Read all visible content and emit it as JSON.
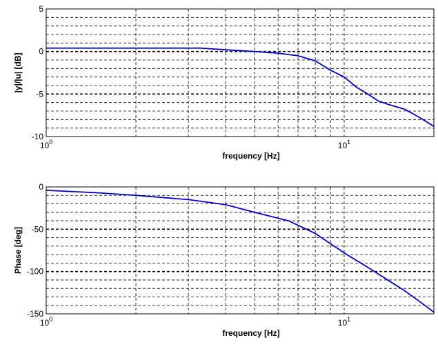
{
  "chart_data": [
    {
      "type": "line",
      "xscale": "log",
      "x_tick_labels": [
        {
          "base": "10",
          "exp": "0"
        },
        {
          "base": "10",
          "exp": "1"
        }
      ],
      "y_tick_labels": [
        "5",
        "0",
        "-5",
        "-10"
      ],
      "xlabel": "frequency [Hz]",
      "ylabel": "|y|/|u| [dB]",
      "xlim": [
        1,
        20
      ],
      "ylim": [
        -10,
        5
      ],
      "grid": true,
      "line_color": "#0000cc",
      "series": [
        {
          "x": [
            1,
            2,
            3.3,
            4,
            5,
            6,
            7,
            8,
            9,
            10,
            11,
            12,
            13,
            14,
            16,
            18,
            20
          ],
          "y": [
            0.4,
            0.4,
            0.4,
            0.2,
            0.0,
            -0.2,
            -0.5,
            -1.1,
            -2.2,
            -3.0,
            -4.2,
            -5.0,
            -5.8,
            -6.2,
            -6.8,
            -7.8,
            -8.8
          ]
        }
      ]
    },
    {
      "type": "line",
      "xscale": "log",
      "x_tick_labels": [
        {
          "base": "10",
          "exp": "0"
        },
        {
          "base": "10",
          "exp": "1"
        }
      ],
      "y_tick_labels": [
        "0",
        "-50",
        "-100",
        "-150"
      ],
      "xlabel": "frequency [Hz]",
      "ylabel": "Phase [deg]",
      "xlim": [
        1,
        20
      ],
      "ylim": [
        -150,
        0
      ],
      "grid": true,
      "line_color": "#0000cc",
      "series": [
        {
          "x": [
            1,
            1.5,
            2,
            3,
            4,
            5,
            6.5,
            8,
            10,
            12,
            14,
            16,
            18,
            20
          ],
          "y": [
            -4,
            -7,
            -10,
            -15,
            -21,
            -30,
            -40,
            -55,
            -78,
            -95,
            -110,
            -123,
            -136,
            -148
          ]
        }
      ]
    }
  ]
}
